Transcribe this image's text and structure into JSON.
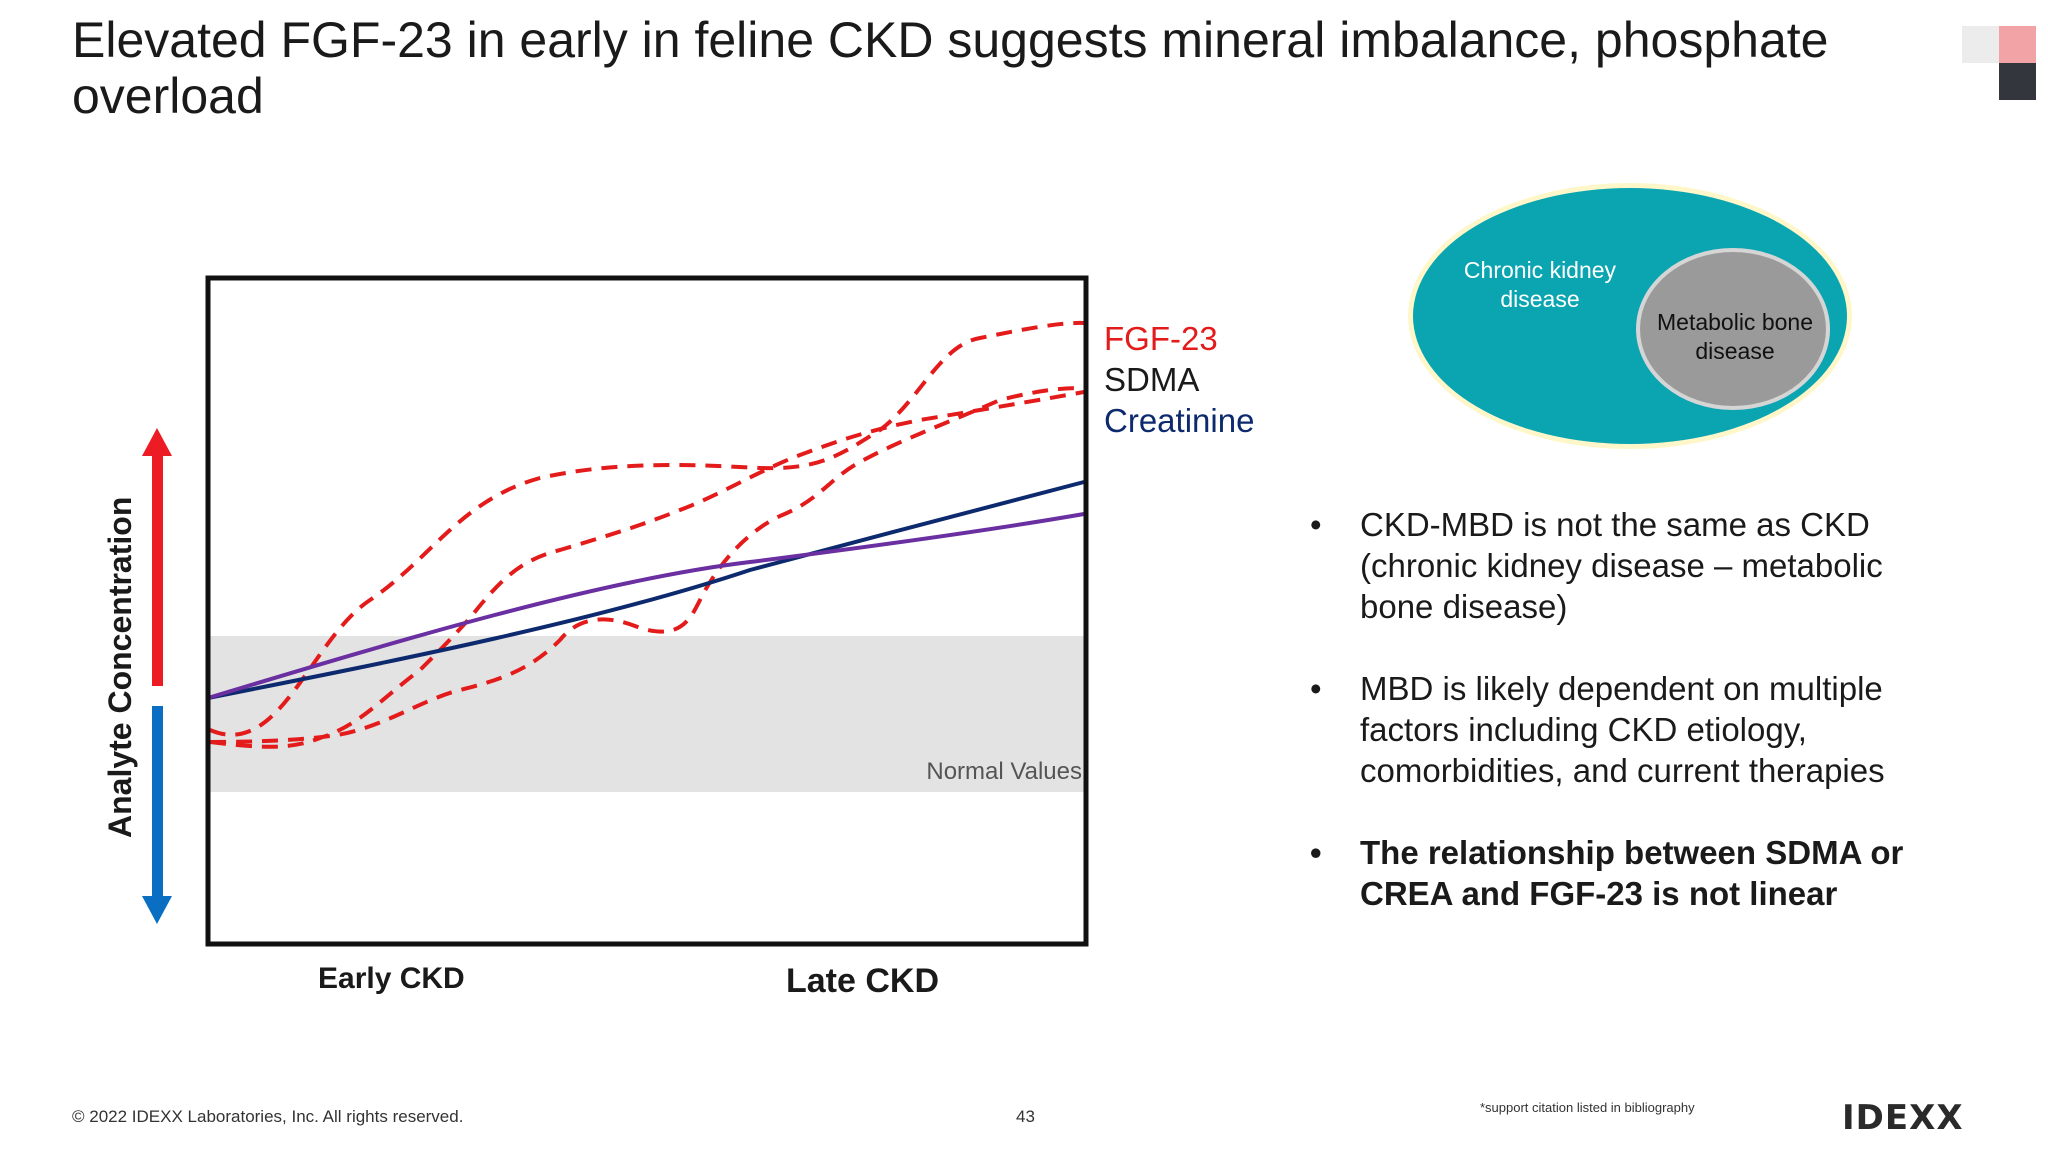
{
  "slide": {
    "title": "Elevated FGF-23 in early in feline CKD suggests mineral imbalance, phosphate overload",
    "page_number": "43",
    "copyright": "© 2022 IDEXX Laboratories, Inc. All rights reserved.",
    "citation_note": "*support citation listed in bibliography",
    "logo_text": "IDEXX"
  },
  "chart_data": {
    "type": "line",
    "ylabel": "Analyte Concentration",
    "x_ticks": [
      "Early CKD",
      "Late CKD"
    ],
    "band_label": "Normal Values",
    "legend": [
      {
        "name": "FGF-23",
        "color": "#e41b1b",
        "style": "dashed"
      },
      {
        "name": "SDMA",
        "color": "#1a1a1a",
        "style": "solid"
      },
      {
        "name": "Creatinine",
        "color": "#0e2a6e",
        "style": "solid"
      }
    ],
    "colors": {
      "fgf23": "#e41b1b",
      "creatinine": "#0e2a6e",
      "purple_line": "#6a2fa0",
      "band": "#e3e3e3",
      "arrow_up": "#ed1c24",
      "arrow_down": "#0a6fc2"
    },
    "legend_placement": "right",
    "grid": false
  },
  "venn": {
    "outer_label": "Chronic kidney disease",
    "inner_label": "Metabolic bone disease",
    "outer_color": "#0aa5b1",
    "inner_color": "#9a9a9a"
  },
  "bullets": [
    {
      "text": "CKD-MBD is not the same as CKD (chronic kidney disease – metabolic bone disease)",
      "bold": false
    },
    {
      "text": "MBD is likely dependent on multiple factors including CKD etiology, comorbidities, and current therapies",
      "bold": false
    },
    {
      "text": "The relationship between SDMA or CREA and FGF-23 is not linear",
      "bold": true
    }
  ]
}
